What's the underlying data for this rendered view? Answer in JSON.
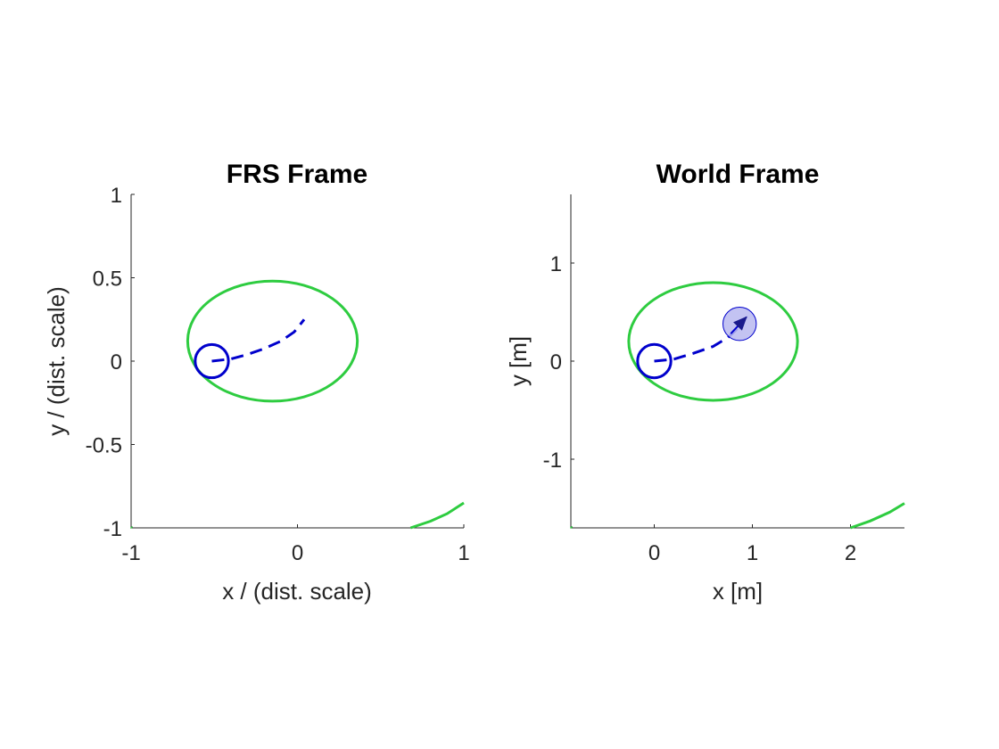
{
  "chart_data": [
    {
      "type": "line",
      "title": "FRS Frame",
      "xlabel": "x / (dist. scale)",
      "ylabel": "y / (dist. scale)",
      "xlim": [
        -1,
        1
      ],
      "ylim": [
        -1,
        1
      ],
      "xticks": [
        -1,
        0,
        1
      ],
      "xtick_labels": [
        "-1",
        "0",
        "1"
      ],
      "yticks": [
        -1,
        -0.5,
        0,
        0.5,
        1
      ],
      "ytick_labels": [
        "-1",
        "-0.5",
        "0",
        "0.5",
        "1"
      ],
      "grid": false,
      "series": [
        {
          "kind": "ellipse",
          "color": "#2ecc40",
          "center": [
            -0.15,
            0.12
          ],
          "radii": [
            0.51,
            0.36
          ]
        },
        {
          "kind": "curve",
          "color": "#2ecc40",
          "points": [
            [
              0.68,
              -1.0
            ],
            [
              0.8,
              -0.96
            ],
            [
              0.9,
              -0.915
            ],
            [
              1.0,
              -0.85
            ]
          ]
        },
        {
          "kind": "curve",
          "color": "#2ecc40",
          "points": [
            [
              -0.995,
              -1.0
            ],
            [
              -1.0,
              -0.995
            ]
          ]
        },
        {
          "kind": "circle",
          "color": "#0000cc",
          "center": [
            -0.515,
            0.0
          ],
          "r": 0.1
        },
        {
          "kind": "dashed-curve",
          "color": "#0000cc",
          "points": [
            [
              -0.515,
              0.0
            ],
            [
              -0.4,
              0.013
            ],
            [
              -0.3,
              0.04
            ],
            [
              -0.2,
              0.075
            ],
            [
              -0.1,
              0.12
            ],
            [
              -0.02,
              0.175
            ],
            [
              0.04,
              0.25
            ]
          ]
        }
      ]
    },
    {
      "type": "line",
      "title": "World Frame",
      "xlabel": "x [m]",
      "ylabel": "y [m]",
      "xlim": [
        -0.85,
        2.55
      ],
      "ylim": [
        -1.7,
        1.7
      ],
      "xticks": [
        0,
        1,
        2
      ],
      "xtick_labels": [
        "0",
        "1",
        "2"
      ],
      "yticks": [
        -1,
        0,
        1
      ],
      "ytick_labels": [
        "-1",
        "0",
        "1"
      ],
      "grid": false,
      "series": [
        {
          "kind": "ellipse",
          "color": "#2ecc40",
          "center": [
            0.6,
            0.2
          ],
          "radii": [
            0.86,
            0.6
          ]
        },
        {
          "kind": "curve",
          "color": "#2ecc40",
          "points": [
            [
              2.0,
              -1.7
            ],
            [
              2.2,
              -1.63
            ],
            [
              2.4,
              -1.54
            ],
            [
              2.55,
              -1.45
            ]
          ]
        },
        {
          "kind": "curve",
          "color": "#2ecc40",
          "points": [
            [
              -0.84,
              -1.7
            ],
            [
              -0.85,
              -1.69
            ]
          ]
        },
        {
          "kind": "circle",
          "color": "#0000cc",
          "center": [
            0.0,
            0.0
          ],
          "r": 0.17
        },
        {
          "kind": "dashed-curve",
          "color": "#0000cc",
          "points": [
            [
              0.0,
              0.0
            ],
            [
              0.2,
              0.02
            ],
            [
              0.4,
              0.08
            ],
            [
              0.6,
              0.15
            ],
            [
              0.75,
              0.24
            ],
            [
              0.9,
              0.38
            ]
          ]
        },
        {
          "kind": "filled-circle",
          "color": "#0000cc",
          "fill": "#b8b8f0",
          "center": [
            0.87,
            0.38
          ],
          "r": 0.17
        },
        {
          "kind": "arrow",
          "color": "#0000cc",
          "from": [
            0.78,
            0.28
          ],
          "to": [
            0.94,
            0.45
          ]
        }
      ]
    }
  ]
}
